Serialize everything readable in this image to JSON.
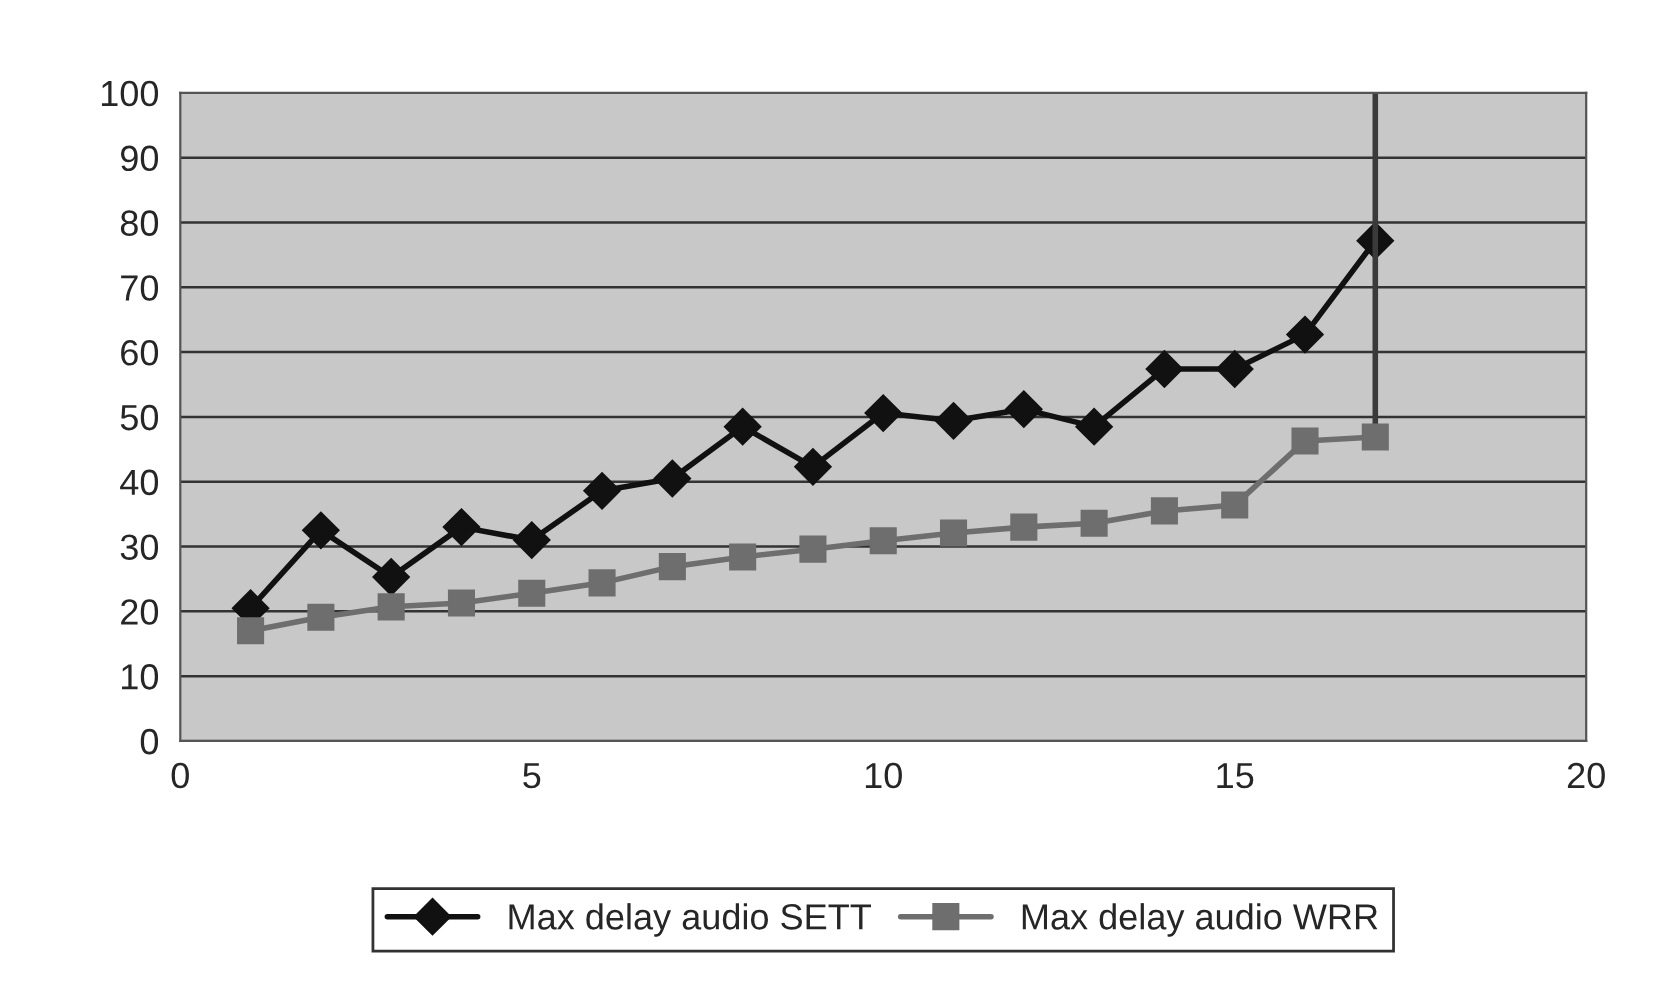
{
  "chart_data": {
    "type": "line",
    "x": [
      1,
      2,
      3,
      4,
      5,
      6,
      7,
      8,
      9,
      10,
      11,
      12,
      13,
      14,
      15,
      16,
      17
    ],
    "series": [
      {
        "name": "Max delay audio SETT",
        "color": "#111111",
        "marker": "diamond",
        "values": [
          20.5,
          32.5,
          25.3,
          33,
          31,
          38.6,
          40.5,
          48.5,
          42.3,
          50.6,
          49.4,
          51.2,
          48.5,
          57.4,
          57.4,
          62.7,
          77.2
        ]
      },
      {
        "color": "#3a3a3a",
        "marker": "none",
        "x": [
          17,
          17
        ],
        "values": [
          47,
          100
        ]
      },
      {
        "name": "Max delay audio WRR",
        "color": "#6e6e6e",
        "marker": "square",
        "values": [
          17,
          19.1,
          20.7,
          21.3,
          22.8,
          24.4,
          26.9,
          28.4,
          29.6,
          30.9,
          32.1,
          33,
          33.6,
          35.5,
          36.4,
          46.3,
          46.9
        ]
      }
    ],
    "xlim": [
      0,
      20
    ],
    "xticks": [
      0,
      5,
      10,
      15,
      20
    ],
    "ylim": [
      0,
      100
    ],
    "yticks": [
      0,
      10,
      20,
      30,
      40,
      50,
      60,
      70,
      80,
      90,
      100
    ],
    "grid": "y",
    "legend": "bottom",
    "line_style": "solid"
  }
}
